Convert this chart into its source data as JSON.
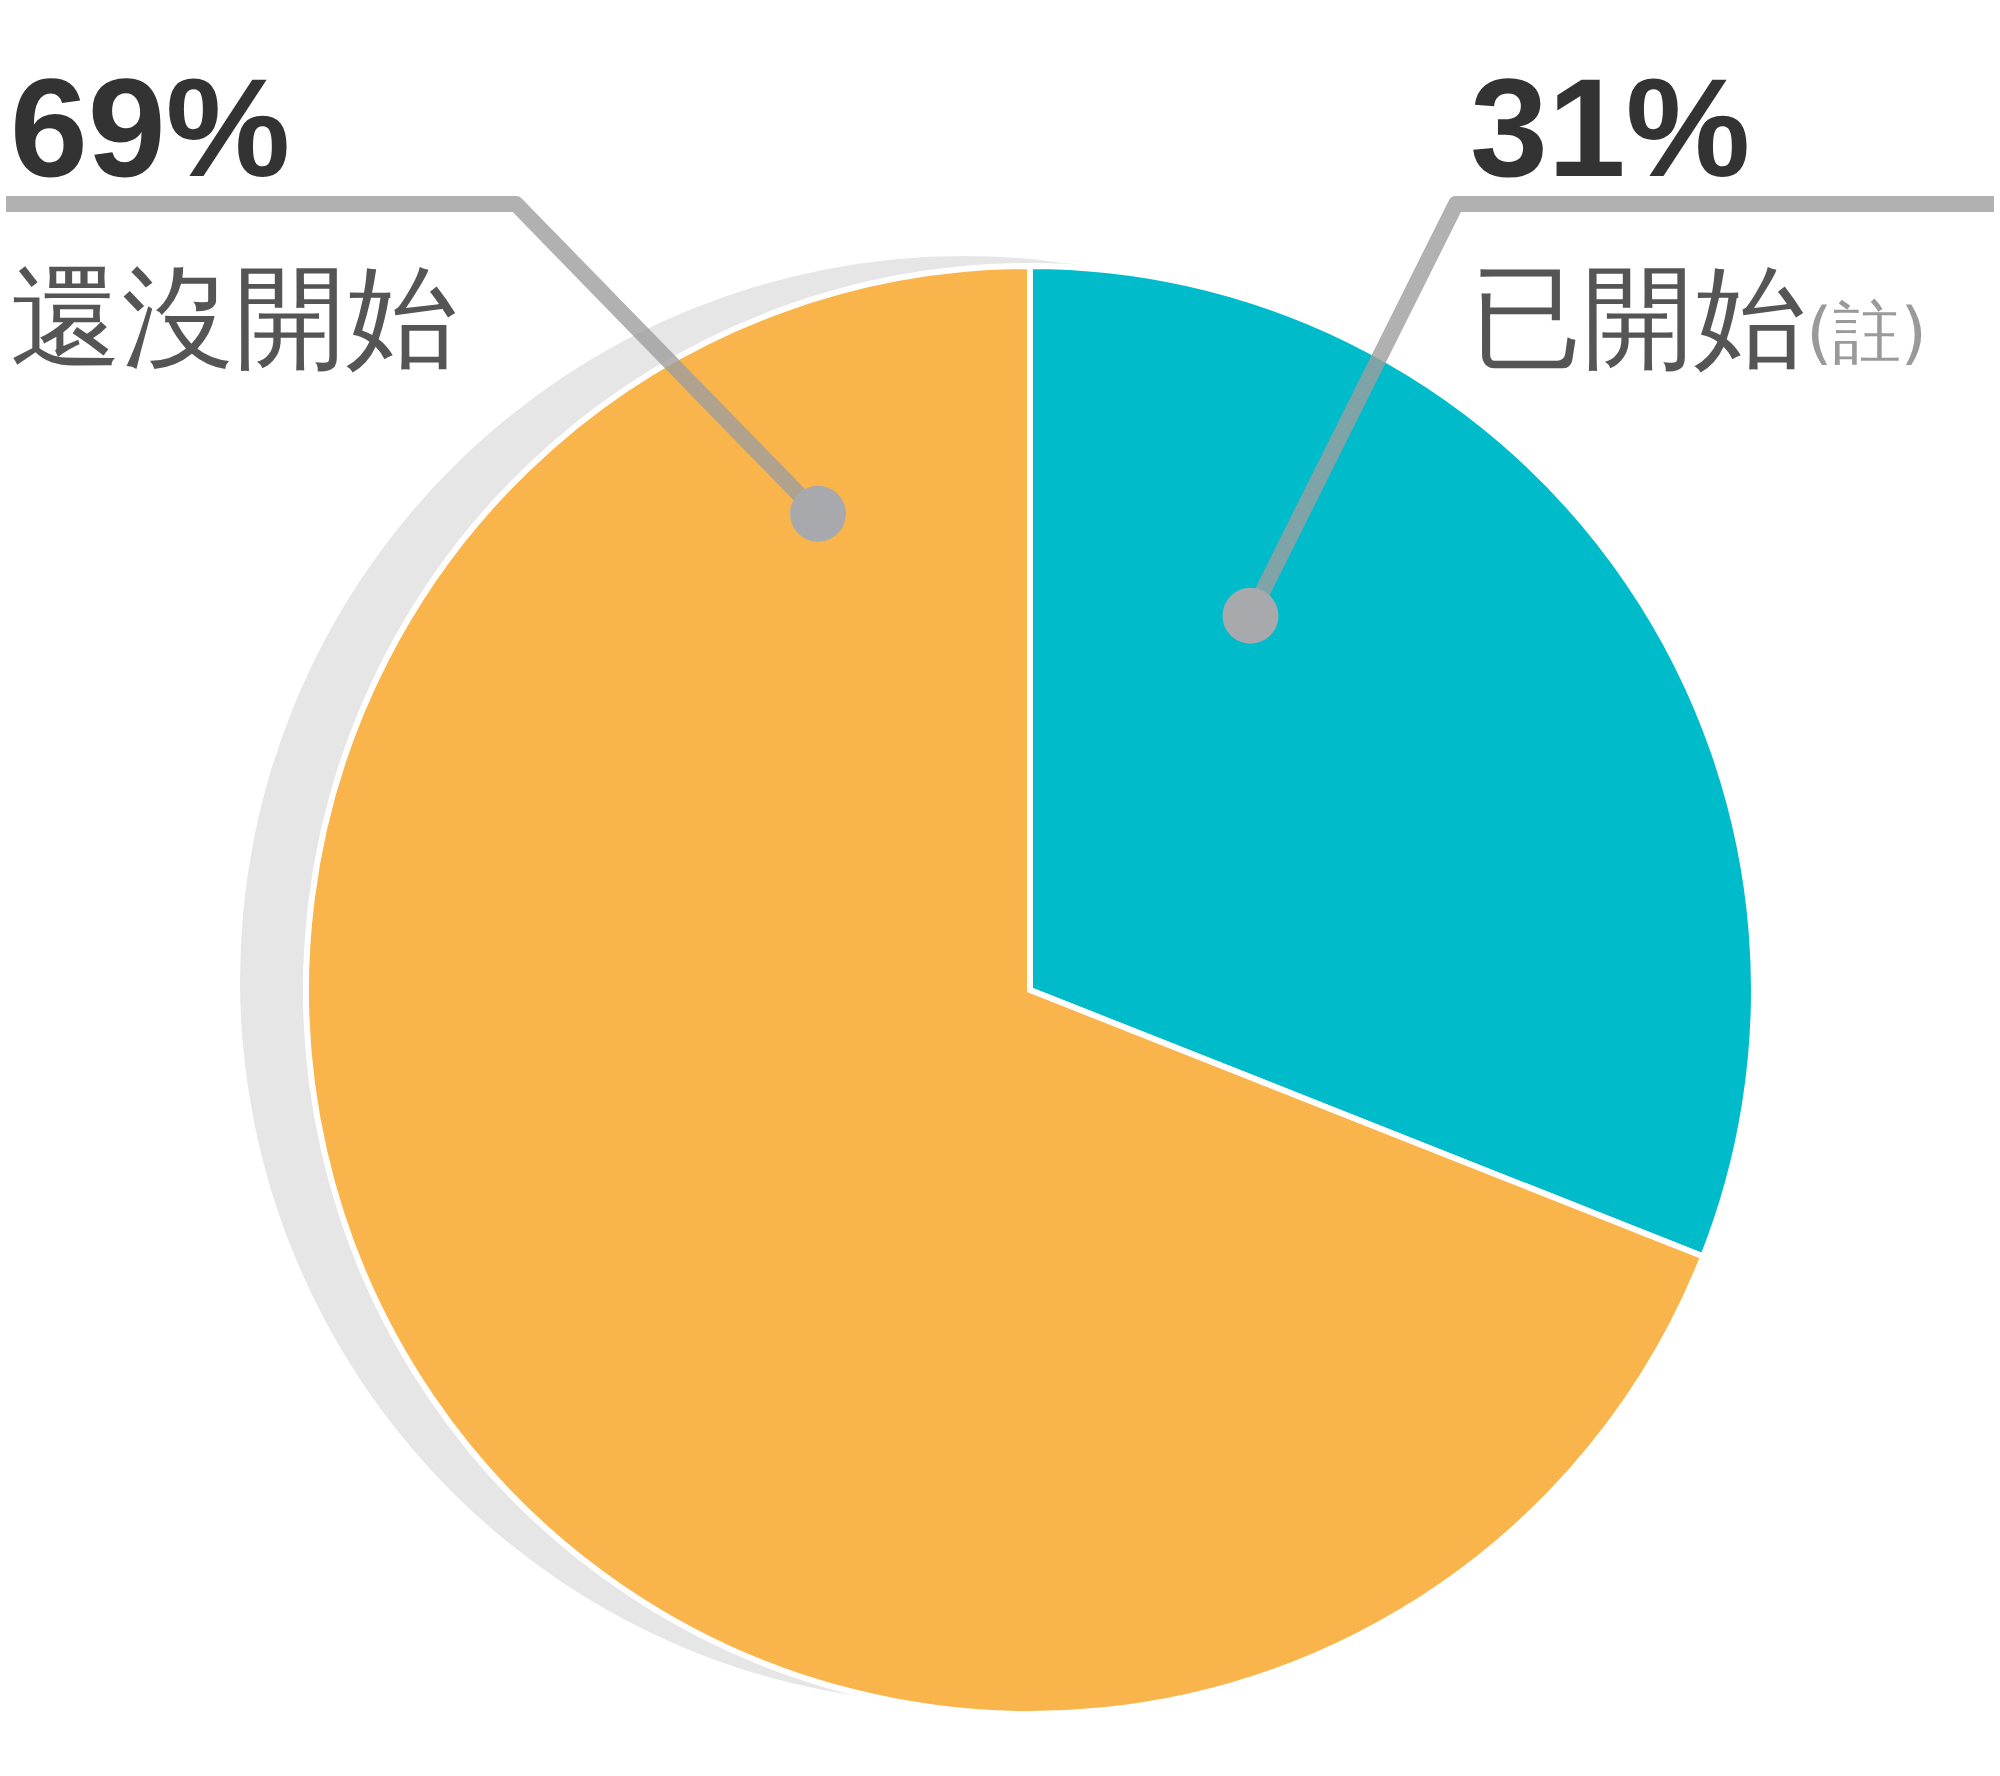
{
  "chart_data": {
    "type": "pie",
    "categories": [
      "已開始",
      "還沒開始"
    ],
    "values": [
      31,
      69
    ],
    "colors": [
      "#00bccb",
      "#f9b54c"
    ],
    "value_labels": [
      "31%",
      "69%"
    ],
    "annotations": [
      "(註)"
    ]
  }
}
